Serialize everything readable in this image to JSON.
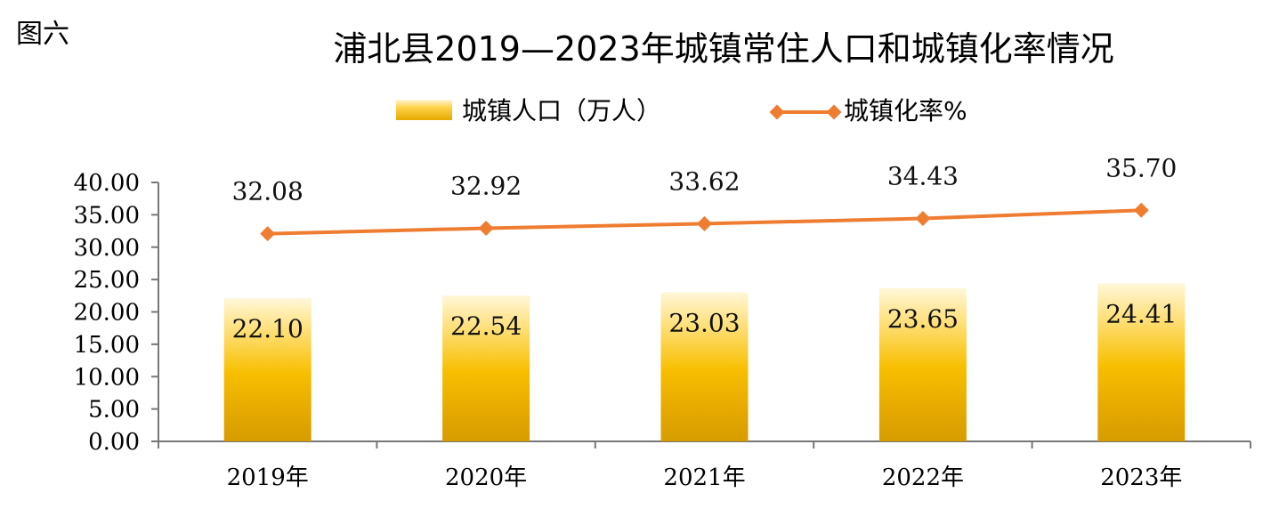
{
  "figure_label": "图六",
  "chart_data": {
    "type": "bar-line-combo",
    "title": "浦北县2019—2023年城镇常住人口和城镇化率情况",
    "categories": [
      "2019年",
      "2020年",
      "2021年",
      "2022年",
      "2023年"
    ],
    "series": [
      {
        "name": "城镇人口（万人）",
        "type": "bar",
        "values": [
          22.1,
          22.54,
          23.03,
          23.65,
          24.41
        ],
        "labels": [
          "22.10",
          "22.54",
          "23.03",
          "23.65",
          "24.41"
        ],
        "color": "#f5b800"
      },
      {
        "name": "城镇化率%",
        "type": "line",
        "values": [
          32.08,
          32.92,
          33.62,
          34.43,
          35.7
        ],
        "labels": [
          "32.08",
          "32.92",
          "33.62",
          "34.43",
          "35.70"
        ],
        "color": "#ef7d31"
      }
    ],
    "ylim": [
      0,
      40
    ],
    "yticks": [
      "0.00",
      "5.00",
      "10.00",
      "15.00",
      "20.00",
      "25.00",
      "30.00",
      "35.00",
      "40.00"
    ],
    "xlabel": "",
    "ylabel": "",
    "grid": false,
    "legend_position": "top"
  }
}
